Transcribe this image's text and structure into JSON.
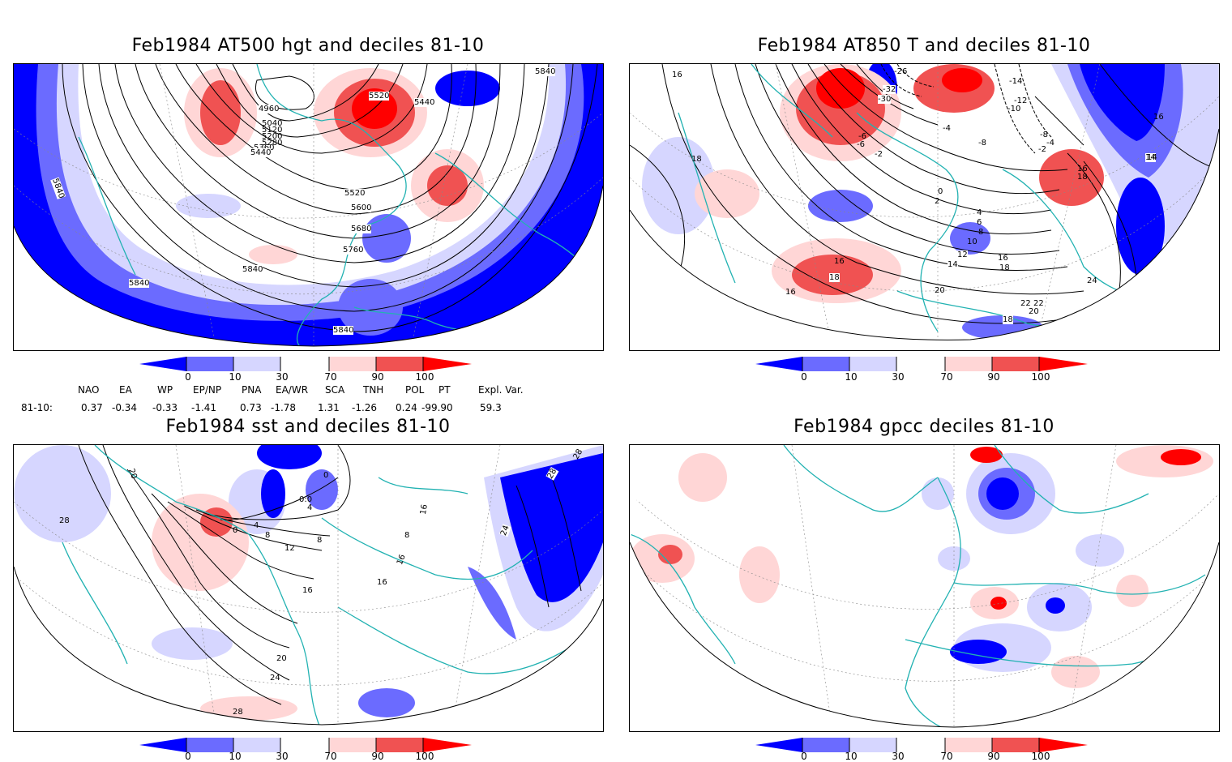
{
  "colors": {
    "dark_blue": "#0000ff",
    "mid_blue": "#6b6bff",
    "light_blue": "#d6d6ff",
    "light_red": "#ffd6d6",
    "mid_red": "#f05252",
    "dark_red": "#ff0000",
    "coast": "#22b2b2",
    "contour": "#000000"
  },
  "colorbar": {
    "tick_labels": [
      "0",
      "10",
      "30",
      "70",
      "90",
      "100"
    ]
  },
  "panels": [
    {
      "title": "Feb1984 AT500 hgt and deciles 81-10",
      "contour_labels": [
        "4960",
        "5040",
        "5120",
        "5200",
        "5280",
        "5360",
        "5440",
        "5520",
        "5440",
        "5520",
        "5600",
        "5680",
        "5760",
        "5840",
        "5840",
        "5840",
        "5840",
        "5840"
      ]
    },
    {
      "title": "Feb1984 AT850 T and deciles 81-10",
      "contour_labels": [
        "16",
        "18",
        "-26",
        "-32",
        "-30",
        "-14",
        "-12",
        "-10",
        "-8",
        "-8",
        "-6",
        "-4",
        "-2",
        "-2",
        "-4",
        "-6",
        "14",
        "16",
        "16",
        "18",
        "14",
        "0",
        "2",
        "4",
        "6",
        "8",
        "10",
        "12",
        "14",
        "16",
        "18",
        "20",
        "22",
        "24",
        "22",
        "20",
        "18",
        "16",
        "18",
        "16"
      ]
    },
    {
      "title": "Feb1984 sst and deciles 81-10",
      "contour_labels": [
        "20",
        "28",
        "0",
        "4",
        "8",
        "12",
        "16",
        "20",
        "24",
        "28",
        "0",
        "4",
        "8",
        "0:0",
        "16",
        "16",
        "8",
        "16",
        "24",
        "28",
        "28"
      ]
    },
    {
      "title": "Feb1984 gpcc deciles 81-10",
      "contour_labels": []
    }
  ],
  "teleconnections": {
    "row_label": "81-10:",
    "headers": [
      "NAO",
      "EA",
      "WP",
      "EP/NP",
      "PNA",
      "EA/WR",
      "SCA",
      "TNH",
      "POL",
      "PT",
      "Expl. Var."
    ],
    "values": [
      "0.37",
      "-0.34",
      "-0.33",
      "-1.41",
      "0.73",
      "-1.78",
      "1.31",
      "-1.26",
      "0.24",
      "-99.90",
      "59.3"
    ]
  }
}
